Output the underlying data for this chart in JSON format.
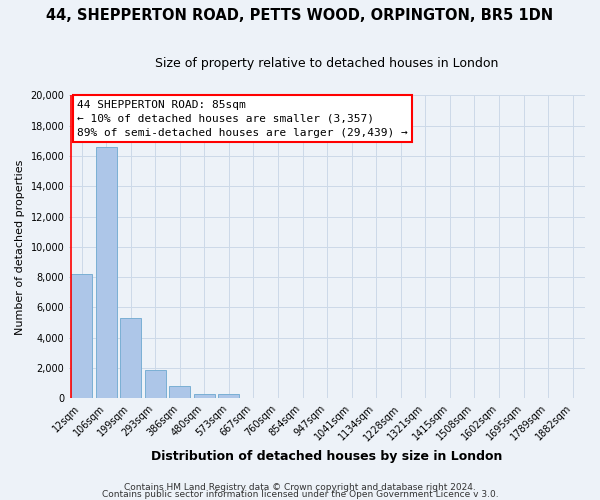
{
  "title_line1": "44, SHEPPERTON ROAD, PETTS WOOD, ORPINGTON, BR5 1DN",
  "title_line2": "Size of property relative to detached houses in London",
  "xlabel": "Distribution of detached houses by size in London",
  "ylabel": "Number of detached properties",
  "bar_labels": [
    "12sqm",
    "106sqm",
    "199sqm",
    "293sqm",
    "386sqm",
    "480sqm",
    "573sqm",
    "667sqm",
    "760sqm",
    "854sqm",
    "947sqm",
    "1041sqm",
    "1134sqm",
    "1228sqm",
    "1321sqm",
    "1415sqm",
    "1508sqm",
    "1602sqm",
    "1695sqm",
    "1789sqm",
    "1882sqm"
  ],
  "bar_values": [
    8200,
    16600,
    5300,
    1850,
    800,
    300,
    270,
    0,
    0,
    0,
    0,
    0,
    0,
    0,
    0,
    0,
    0,
    0,
    0,
    0,
    0
  ],
  "bar_color": "#adc6e8",
  "bar_edge_color": "#7aafd4",
  "ylim": [
    0,
    20000
  ],
  "yticks": [
    0,
    2000,
    4000,
    6000,
    8000,
    10000,
    12000,
    14000,
    16000,
    18000,
    20000
  ],
  "annotation_box_text_line1": "44 SHEPPERTON ROAD: 85sqm",
  "annotation_box_text_line2": "← 10% of detached houses are smaller (3,357)",
  "annotation_box_text_line3": "89% of semi-detached houses are larger (29,439) →",
  "footer_line1": "Contains HM Land Registry data © Crown copyright and database right 2024.",
  "footer_line2": "Contains public sector information licensed under the Open Government Licence v 3.0.",
  "grid_color": "#ccd9e8",
  "background_color": "#edf2f8",
  "red_line_bar_index": 0,
  "title1_fontsize": 10.5,
  "title2_fontsize": 9,
  "ylabel_fontsize": 8,
  "xlabel_fontsize": 9,
  "tick_fontsize": 7,
  "ann_fontsize": 8,
  "footer_fontsize": 6.5
}
